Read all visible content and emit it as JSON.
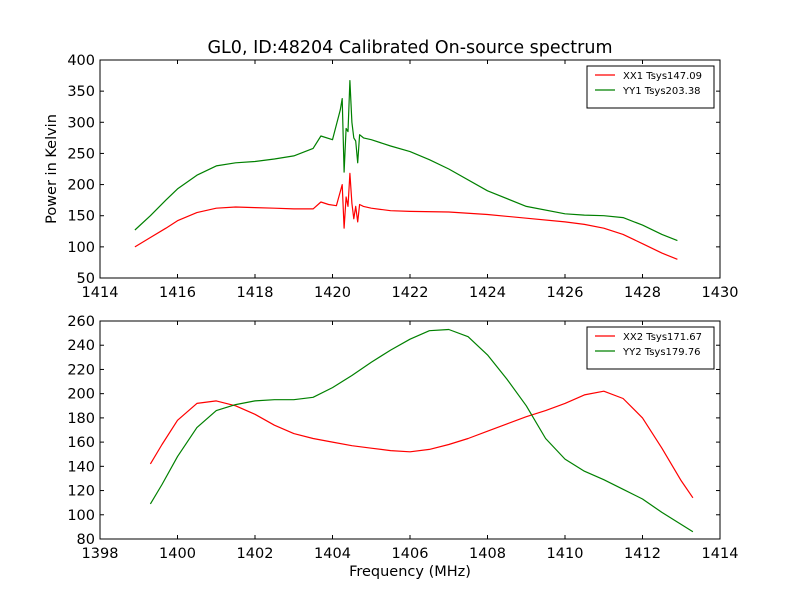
{
  "chart_data": [
    {
      "type": "line",
      "title": "GL0, ID:48204 Calibrated On-source spectrum",
      "xlabel": "",
      "ylabel": "Power in Kelvin",
      "xlim": [
        1414,
        1430
      ],
      "ylim": [
        50,
        400
      ],
      "xticks": [
        1414,
        1416,
        1418,
        1420,
        1422,
        1424,
        1426,
        1428,
        1430
      ],
      "yticks": [
        50,
        100,
        150,
        200,
        250,
        300,
        350,
        400
      ],
      "legend_position": "top-right",
      "series": [
        {
          "name": "XX1 Tsys147.09",
          "color": "#ff0000",
          "x": [
            1414.9,
            1415.3,
            1415.7,
            1416.0,
            1416.5,
            1417.0,
            1417.5,
            1418.0,
            1418.5,
            1419.0,
            1419.5,
            1419.7,
            1419.9,
            1420.1,
            1420.25,
            1420.3,
            1420.35,
            1420.4,
            1420.45,
            1420.5,
            1420.55,
            1420.6,
            1420.65,
            1420.7,
            1420.8,
            1421.0,
            1421.5,
            1422.0,
            1423.0,
            1424.0,
            1425.0,
            1426.0,
            1426.5,
            1427.0,
            1427.5,
            1428.0,
            1428.5,
            1428.9
          ],
          "y": [
            100,
            115,
            130,
            142,
            155,
            162,
            164,
            163,
            162,
            161,
            161,
            172,
            168,
            166,
            200,
            130,
            180,
            165,
            218,
            170,
            145,
            165,
            140,
            168,
            165,
            162,
            158,
            157,
            156,
            152,
            146,
            140,
            136,
            130,
            120,
            105,
            90,
            80
          ]
        },
        {
          "name": "YY1 Tsys203.38",
          "color": "#008000",
          "x": [
            1414.9,
            1415.3,
            1415.7,
            1416.0,
            1416.5,
            1417.0,
            1417.5,
            1418.0,
            1418.5,
            1419.0,
            1419.5,
            1419.7,
            1420.0,
            1420.2,
            1420.25,
            1420.3,
            1420.35,
            1420.4,
            1420.45,
            1420.5,
            1420.55,
            1420.6,
            1420.65,
            1420.7,
            1420.8,
            1421.0,
            1421.5,
            1422.0,
            1422.5,
            1423.0,
            1424.0,
            1425.0,
            1426.0,
            1426.5,
            1427.0,
            1427.5,
            1428.0,
            1428.5,
            1428.9
          ],
          "y": [
            127,
            150,
            175,
            193,
            215,
            230,
            235,
            237,
            241,
            246,
            258,
            278,
            272,
            320,
            338,
            220,
            290,
            285,
            367,
            300,
            275,
            270,
            235,
            280,
            275,
            272,
            262,
            253,
            240,
            225,
            190,
            165,
            153,
            151,
            150,
            147,
            135,
            120,
            110
          ]
        }
      ]
    },
    {
      "type": "line",
      "title": "",
      "xlabel": "Frequency (MHz)",
      "ylabel": "",
      "xlim": [
        1398,
        1414
      ],
      "ylim": [
        80,
        260
      ],
      "xticks": [
        1398,
        1400,
        1402,
        1404,
        1406,
        1408,
        1410,
        1412,
        1414
      ],
      "yticks": [
        80,
        100,
        120,
        140,
        160,
        180,
        200,
        220,
        240,
        260
      ],
      "legend_position": "top-right",
      "series": [
        {
          "name": "XX2 Tsys171.67",
          "color": "#ff0000",
          "x": [
            1399.3,
            1399.6,
            1400.0,
            1400.5,
            1401.0,
            1401.5,
            1402.0,
            1402.5,
            1403.0,
            1403.5,
            1404.0,
            1404.5,
            1405.0,
            1405.5,
            1406.0,
            1406.5,
            1407.0,
            1407.5,
            1408.0,
            1408.5,
            1409.0,
            1409.5,
            1410.0,
            1410.5,
            1411.0,
            1411.5,
            1412.0,
            1412.5,
            1413.0,
            1413.3
          ],
          "y": [
            142,
            158,
            178,
            192,
            194,
            190,
            183,
            174,
            167,
            163,
            160,
            157,
            155,
            153,
            152,
            154,
            158,
            163,
            169,
            175,
            181,
            186,
            192,
            199,
            202,
            196,
            180,
            155,
            128,
            114
          ]
        },
        {
          "name": "YY2 Tsys179.76",
          "color": "#008000",
          "x": [
            1399.3,
            1399.6,
            1400.0,
            1400.5,
            1401.0,
            1401.5,
            1402.0,
            1402.5,
            1403.0,
            1403.5,
            1404.0,
            1404.5,
            1405.0,
            1405.5,
            1406.0,
            1406.5,
            1407.0,
            1407.5,
            1408.0,
            1408.5,
            1409.0,
            1409.5,
            1410.0,
            1410.5,
            1411.0,
            1411.5,
            1412.0,
            1412.5,
            1413.0,
            1413.3
          ],
          "y": [
            109,
            125,
            148,
            172,
            186,
            191,
            194,
            195,
            195,
            197,
            205,
            215,
            226,
            236,
            245,
            252,
            253,
            247,
            232,
            212,
            190,
            163,
            146,
            136,
            129,
            121,
            113,
            102,
            92,
            86
          ]
        }
      ]
    }
  ]
}
